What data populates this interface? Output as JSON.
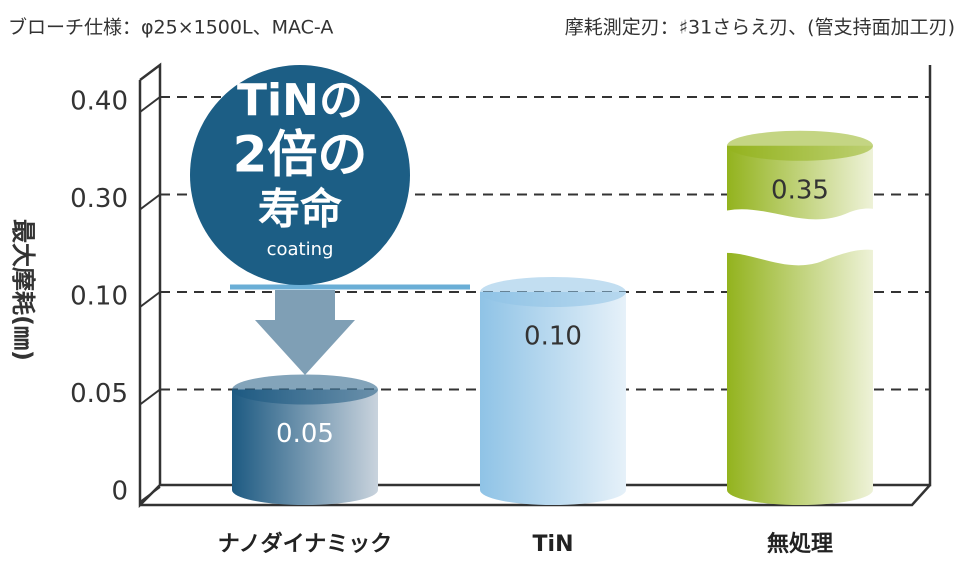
{
  "chart_data": {
    "type": "bar",
    "subtitle": "ブローチ仕様：φ25×1500L、MAC-A",
    "annotation": "摩耗測定刃：♯31さらえ刃、(管支持面加工刃)",
    "y_label": "最大摩耗(㎜)",
    "callout": [
      "TiNの",
      "2倍の",
      "寿命",
      "coating"
    ],
    "categories": [
      "ナノダイナミック",
      "TiN",
      "無処理"
    ],
    "values": [
      0.05,
      0.1,
      0.35
    ],
    "value_labels": [
      "0.05",
      "0.10",
      "0.35"
    ],
    "colors": [
      "#1d5a82",
      "#8fc3e6",
      "#93b31e"
    ],
    "ylim": [
      0,
      0.4
    ],
    "yticks": [
      0,
      0.05,
      {
        "value": 0.1,
        "label": "0.10"
      },
      {
        "value": 0.3,
        "label": "0.30"
      },
      {
        "value": 0.4,
        "label": "0.40"
      }
    ],
    "grid": true
  }
}
